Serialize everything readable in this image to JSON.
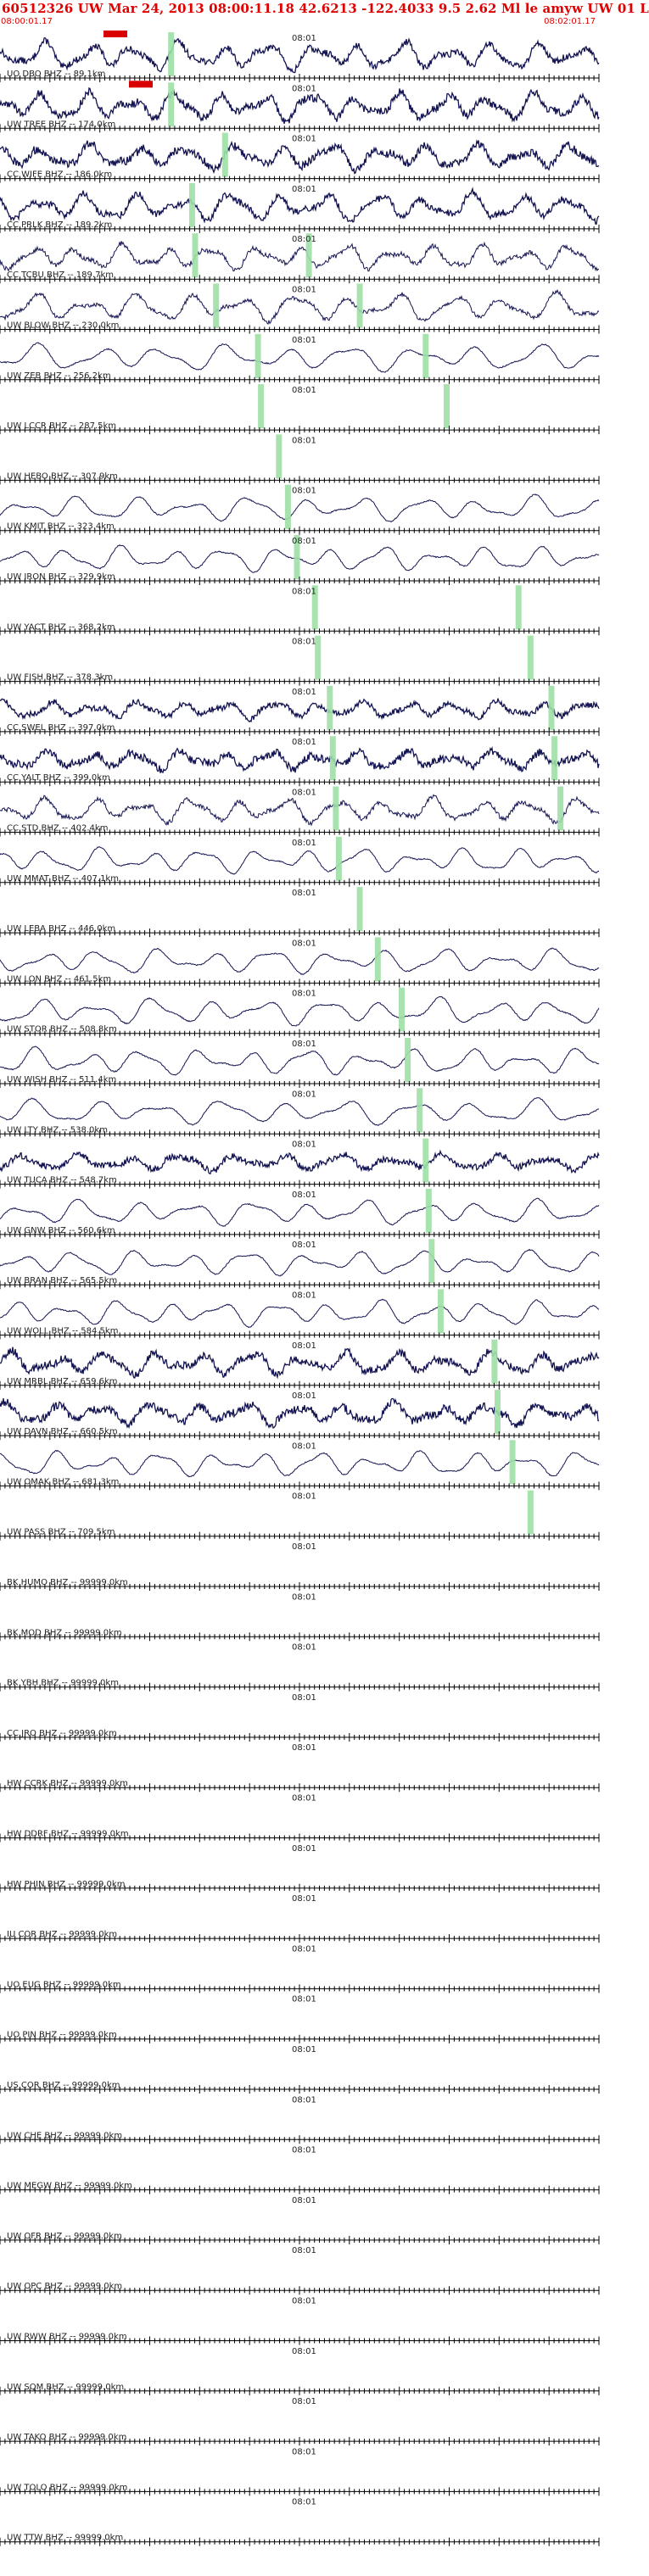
{
  "header": {
    "title": "60512326 UW Mar 24, 2013 08:00:11.18   42.6213 -122.4033  9.5 2.62 Ml le amyw UW 01   L",
    "start_time": "08:00:01.17",
    "end_time": "08:02:01.17"
  },
  "minute_mark_label": "08:01",
  "colors": {
    "title": "#e00000",
    "trace": "#141452",
    "pick": "#9fe0a6",
    "clip": "#d80000",
    "axis": "#000000"
  },
  "traces": [
    {
      "label": "UO DBO BHZ -- 89.1km",
      "amp": 0.9,
      "freq": 1.4,
      "noise": 0.25,
      "clipped": true,
      "picks": [
        0.285
      ]
    },
    {
      "label": "UW TREE BHZ -- 174.0km",
      "amp": 0.9,
      "freq": 1.4,
      "noise": 0.3,
      "clipped": true,
      "picks": [
        0.285
      ]
    },
    {
      "label": "CC WIFE BHZ -- 186.0km",
      "amp": 0.8,
      "freq": 1.3,
      "noise": 0.35,
      "clipped": false,
      "picks": [
        0.375
      ]
    },
    {
      "label": "CC PRLK BHZ -- 189.2km",
      "amp": 0.9,
      "freq": 1.3,
      "noise": 0.25,
      "clipped": false,
      "picks": [
        0.32
      ]
    },
    {
      "label": "CC TCBU BHZ -- 189.7km",
      "amp": 0.8,
      "freq": 1.4,
      "noise": 0.2,
      "clipped": false,
      "picks": [
        0.325,
        0.515
      ]
    },
    {
      "label": "UW BLOW BHZ -- 230.0km",
      "amp": 0.9,
      "freq": 1.2,
      "noise": 0.15,
      "clipped": false,
      "picks": [
        0.36,
        0.6
      ]
    },
    {
      "label": "UW ZEB BHZ -- 256.2km",
      "amp": 0.85,
      "freq": 1.0,
      "noise": 0.05,
      "clipped": false,
      "picks": [
        0.43,
        0.71
      ]
    },
    {
      "label": "UW LCCR BHZ -- 287.5km",
      "amp": 0,
      "freq": 0,
      "noise": 0,
      "clipped": false,
      "picks": [
        0.435,
        0.745
      ]
    },
    {
      "label": "UW HEBO BHZ -- 307.9km",
      "amp": 0,
      "freq": 0,
      "noise": 0,
      "clipped": false,
      "picks": [
        0.465
      ]
    },
    {
      "label": "UW KMIT BHZ -- 323.4km",
      "amp": 0.8,
      "freq": 1.1,
      "noise": 0.05,
      "clipped": false,
      "picks": [
        0.48
      ]
    },
    {
      "label": "UW IRON BHZ -- 329.9km",
      "amp": 0.8,
      "freq": 1.2,
      "noise": 0.05,
      "clipped": false,
      "picks": [
        0.495
      ]
    },
    {
      "label": "UW YACT BHZ -- 368.2km",
      "amp": 0,
      "freq": 0,
      "noise": 0,
      "clipped": false,
      "picks": [
        0.525,
        0.865
      ]
    },
    {
      "label": "UW FISH BHZ -- 378.3km",
      "amp": 0,
      "freq": 0,
      "noise": 0,
      "clipped": false,
      "picks": [
        0.53,
        0.885
      ]
    },
    {
      "label": "CC SWEL BHZ -- 397.0km",
      "amp": 0.55,
      "freq": 1.4,
      "noise": 0.35,
      "clipped": false,
      "picks": [
        0.55,
        0.92
      ]
    },
    {
      "label": "CC YALT BHZ -- 399.0km",
      "amp": 0.6,
      "freq": 1.4,
      "noise": 0.45,
      "clipped": false,
      "picks": [
        0.555,
        0.925
      ]
    },
    {
      "label": "CC STD BHZ -- 402.4km",
      "amp": 0.8,
      "freq": 1.3,
      "noise": 0.2,
      "clipped": false,
      "picks": [
        0.56,
        0.935
      ]
    },
    {
      "label": "UW MMAT BHZ -- 407.1km",
      "amp": 0.8,
      "freq": 1.2,
      "noise": 0.05,
      "clipped": false,
      "picks": [
        0.565
      ]
    },
    {
      "label": "UW LEBA BHZ -- 446.0km",
      "amp": 0,
      "freq": 0,
      "noise": 0,
      "clipped": false,
      "picks": [
        0.6
      ]
    },
    {
      "label": "UW LON BHZ -- 461.5km",
      "amp": 0.8,
      "freq": 1.1,
      "noise": 0.05,
      "clipped": false,
      "picks": [
        0.63
      ]
    },
    {
      "label": "UW STOR BHZ -- 508.8km",
      "amp": 0.85,
      "freq": 1.1,
      "noise": 0.05,
      "clipped": false,
      "picks": [
        0.67
      ]
    },
    {
      "label": "UW WISH BHZ -- 511.4km",
      "amp": 0.85,
      "freq": 1.15,
      "noise": 0.05,
      "clipped": false,
      "picks": [
        0.68
      ]
    },
    {
      "label": "UW LTY BHZ -- 538.0km",
      "amp": 0.8,
      "freq": 1.0,
      "noise": 0.05,
      "clipped": false,
      "picks": [
        0.7
      ]
    },
    {
      "label": "UW TUCA BHZ -- 548.7km",
      "amp": 0.55,
      "freq": 1.2,
      "noise": 0.4,
      "clipped": false,
      "picks": [
        0.71
      ]
    },
    {
      "label": "UW GNW BHZ -- 560.6km",
      "amp": 0.8,
      "freq": 1.1,
      "noise": 0.05,
      "clipped": false,
      "picks": [
        0.715
      ]
    },
    {
      "label": "UW BRAN BHZ -- 565.5km",
      "amp": 0.8,
      "freq": 1.1,
      "noise": 0.05,
      "clipped": false,
      "picks": [
        0.72
      ]
    },
    {
      "label": "UW WOLL BHZ -- 584.5km",
      "amp": 0.8,
      "freq": 1.2,
      "noise": 0.05,
      "clipped": false,
      "picks": [
        0.735
      ]
    },
    {
      "label": "UW MRBL BHZ -- 659.6km",
      "amp": 0.75,
      "freq": 1.3,
      "noise": 0.35,
      "clipped": false,
      "picks": [
        0.825
      ]
    },
    {
      "label": "UW DAVN BHZ -- 660.5km",
      "amp": 0.7,
      "freq": 1.3,
      "noise": 0.4,
      "clipped": false,
      "picks": [
        0.83
      ]
    },
    {
      "label": "UW OMAK BHZ -- 681.3km",
      "amp": 0.8,
      "freq": 1.2,
      "noise": 0.05,
      "clipped": false,
      "picks": [
        0.855
      ]
    },
    {
      "label": "UW PASS BHZ -- 709.5km",
      "amp": 0,
      "freq": 0,
      "noise": 0,
      "clipped": false,
      "picks": [
        0.885
      ]
    },
    {
      "label": "BK HUMO BHZ -- 99999.0km",
      "amp": 0,
      "freq": 0,
      "noise": 0,
      "clipped": false,
      "picks": []
    },
    {
      "label": "BK MOD BHZ -- 99999.0km",
      "amp": 0,
      "freq": 0,
      "noise": 0,
      "clipped": false,
      "picks": []
    },
    {
      "label": "BK YBH BHZ -- 99999.0km",
      "amp": 0,
      "freq": 0,
      "noise": 0,
      "clipped": false,
      "picks": []
    },
    {
      "label": "CC JRO BHZ -- 99999.0km",
      "amp": 0,
      "freq": 0,
      "noise": 0,
      "clipped": false,
      "picks": []
    },
    {
      "label": "HW CCRK BHZ -- 99999.0km",
      "amp": 0,
      "freq": 0,
      "noise": 0,
      "clipped": false,
      "picks": []
    },
    {
      "label": "HW DDRF BHZ -- 99999.0km",
      "amp": 0,
      "freq": 0,
      "noise": 0,
      "clipped": false,
      "picks": []
    },
    {
      "label": "HW PHIN BHZ -- 99999.0km",
      "amp": 0,
      "freq": 0,
      "noise": 0,
      "clipped": false,
      "picks": []
    },
    {
      "label": "IU COR BHZ -- 99999.0km",
      "amp": 0,
      "freq": 0,
      "noise": 0,
      "clipped": false,
      "picks": []
    },
    {
      "label": "UO EUG BHZ -- 99999.0km",
      "amp": 0,
      "freq": 0,
      "noise": 0,
      "clipped": false,
      "picks": []
    },
    {
      "label": "UO PIN BHZ -- 99999.0km",
      "amp": 0,
      "freq": 0,
      "noise": 0,
      "clipped": false,
      "picks": []
    },
    {
      "label": "US COR BHZ -- 99999.0km",
      "amp": 0,
      "freq": 0,
      "noise": 0,
      "clipped": false,
      "picks": []
    },
    {
      "label": "UW CHE BHZ -- 99999.0km",
      "amp": 0,
      "freq": 0,
      "noise": 0,
      "clipped": false,
      "picks": []
    },
    {
      "label": "UW MEGW BHZ -- 99999.0km",
      "amp": 0,
      "freq": 0,
      "noise": 0,
      "clipped": false,
      "picks": []
    },
    {
      "label": "UW OFR BHZ -- 99999.0km",
      "amp": 0,
      "freq": 0,
      "noise": 0,
      "clipped": false,
      "picks": []
    },
    {
      "label": "UW OPC BHZ -- 99999.0km",
      "amp": 0,
      "freq": 0,
      "noise": 0,
      "clipped": false,
      "picks": []
    },
    {
      "label": "UW RWW BHZ -- 99999.0km",
      "amp": 0,
      "freq": 0,
      "noise": 0,
      "clipped": false,
      "picks": []
    },
    {
      "label": "UW SQM BHZ -- 99999.0km",
      "amp": 0,
      "freq": 0,
      "noise": 0,
      "clipped": false,
      "picks": []
    },
    {
      "label": "UW TAKO BHZ -- 99999.0km",
      "amp": 0,
      "freq": 0,
      "noise": 0,
      "clipped": false,
      "picks": []
    },
    {
      "label": "UW TOLO BHZ -- 99999.0km",
      "amp": 0,
      "freq": 0,
      "noise": 0,
      "clipped": false,
      "picks": []
    },
    {
      "label": "UW TTW BHZ -- 99999.0km",
      "amp": 0,
      "freq": 0,
      "noise": 0,
      "clipped": false,
      "picks": []
    }
  ]
}
